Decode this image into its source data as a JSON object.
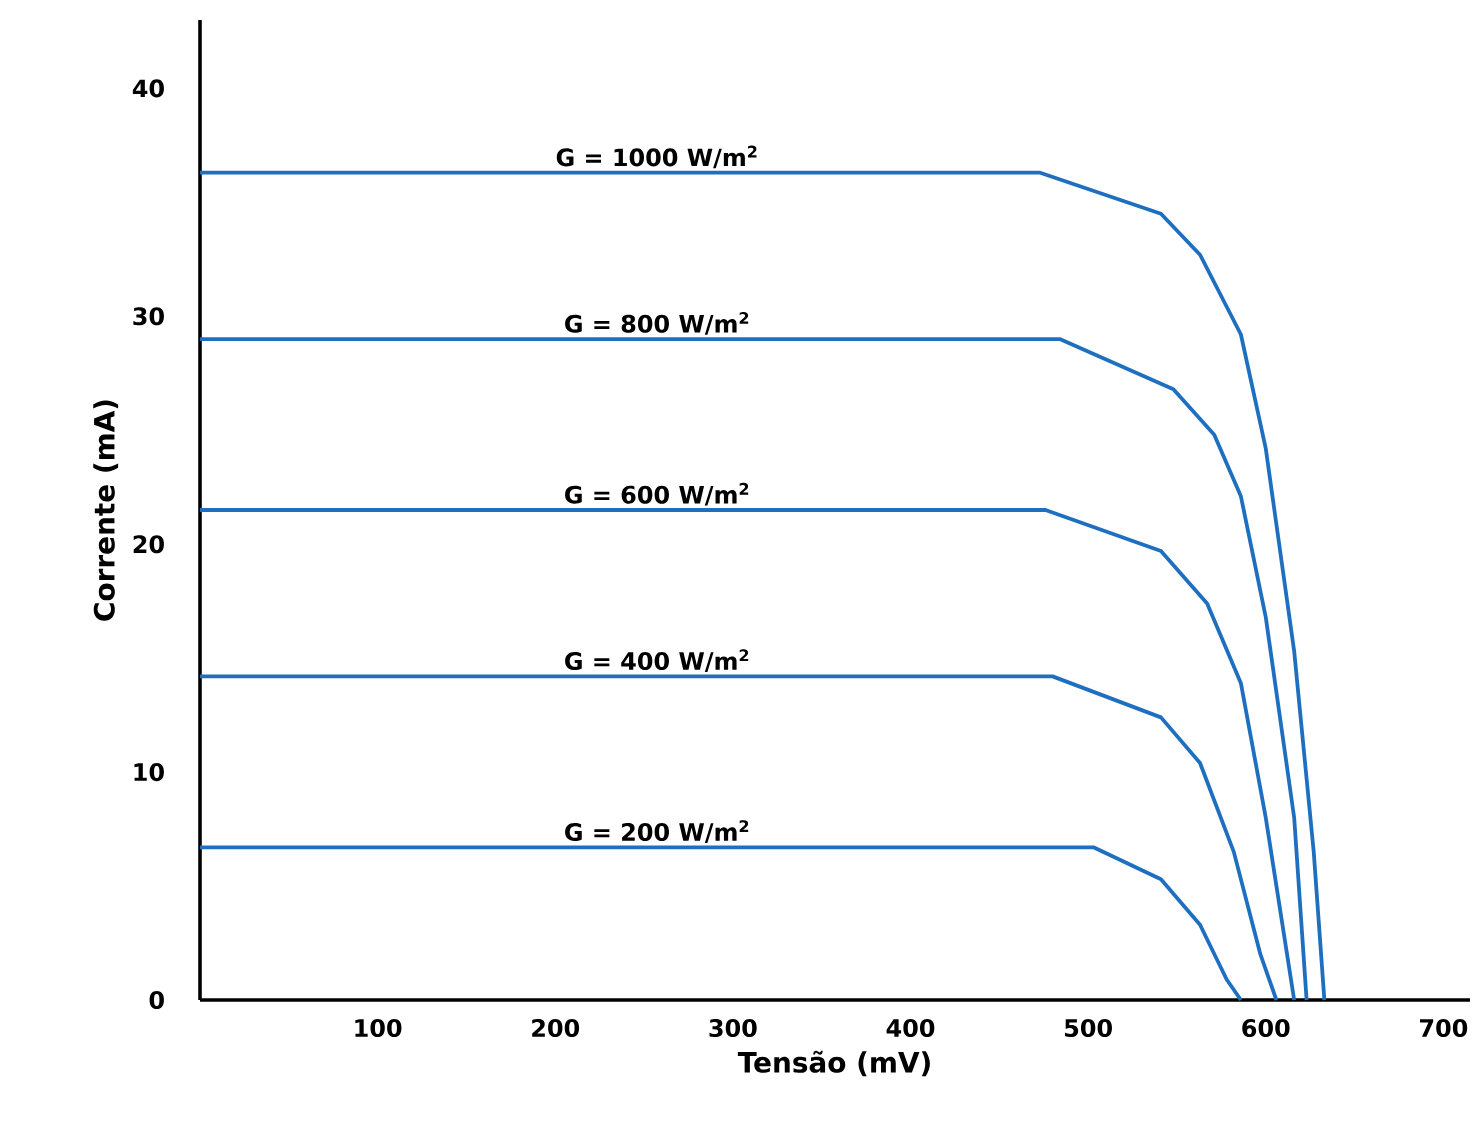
{
  "chart_data": {
    "type": "line",
    "xlabel": "Tensão (mV)",
    "ylabel": "Corrente (mA)",
    "xlim": [
      0,
      715
    ],
    "ylim": [
      0,
      43
    ],
    "xticks": [
      100,
      200,
      300,
      400,
      500,
      600,
      700
    ],
    "yticks": [
      0,
      10,
      20,
      30,
      40
    ],
    "grid": false,
    "legend": false,
    "marker": "none",
    "line_style": "solid",
    "series": [
      {
        "name": "G = 1000 W/m$^{2}$",
        "color": "#1f6fc0",
        "x": [
          0,
          473,
          541,
          563,
          586,
          600,
          616,
          627,
          633
        ],
        "values": [
          36.3,
          36.3,
          34.5,
          32.7,
          29.2,
          24.2,
          15.3,
          6.5,
          0
        ]
      },
      {
        "name": "G = 800 W/m$^{2}$",
        "color": "#1f6fc0",
        "x": [
          0,
          484,
          548,
          571,
          586,
          600,
          616,
          623
        ],
        "values": [
          29.0,
          29.0,
          26.8,
          24.8,
          22.1,
          16.8,
          8.0,
          0
        ]
      },
      {
        "name": "G = 600 W/m$^{2}$",
        "color": "#1f6fc0",
        "x": [
          0,
          476,
          541,
          567,
          586,
          600,
          616
        ],
        "values": [
          21.5,
          21.5,
          19.7,
          17.4,
          13.9,
          8.0,
          0
        ]
      },
      {
        "name": "G = 400 W/m$^{2}$",
        "color": "#1f6fc0",
        "x": [
          0,
          480,
          541,
          563,
          582,
          597,
          606
        ],
        "values": [
          14.2,
          14.2,
          12.4,
          10.4,
          6.5,
          2.0,
          0
        ]
      },
      {
        "name": "G = 200 W/m$^{2}$",
        "color": "#1f6fc0",
        "x": [
          0,
          503,
          541,
          563,
          578,
          586
        ],
        "values": [
          6.7,
          6.7,
          5.3,
          3.3,
          0.9,
          0
        ]
      }
    ]
  }
}
